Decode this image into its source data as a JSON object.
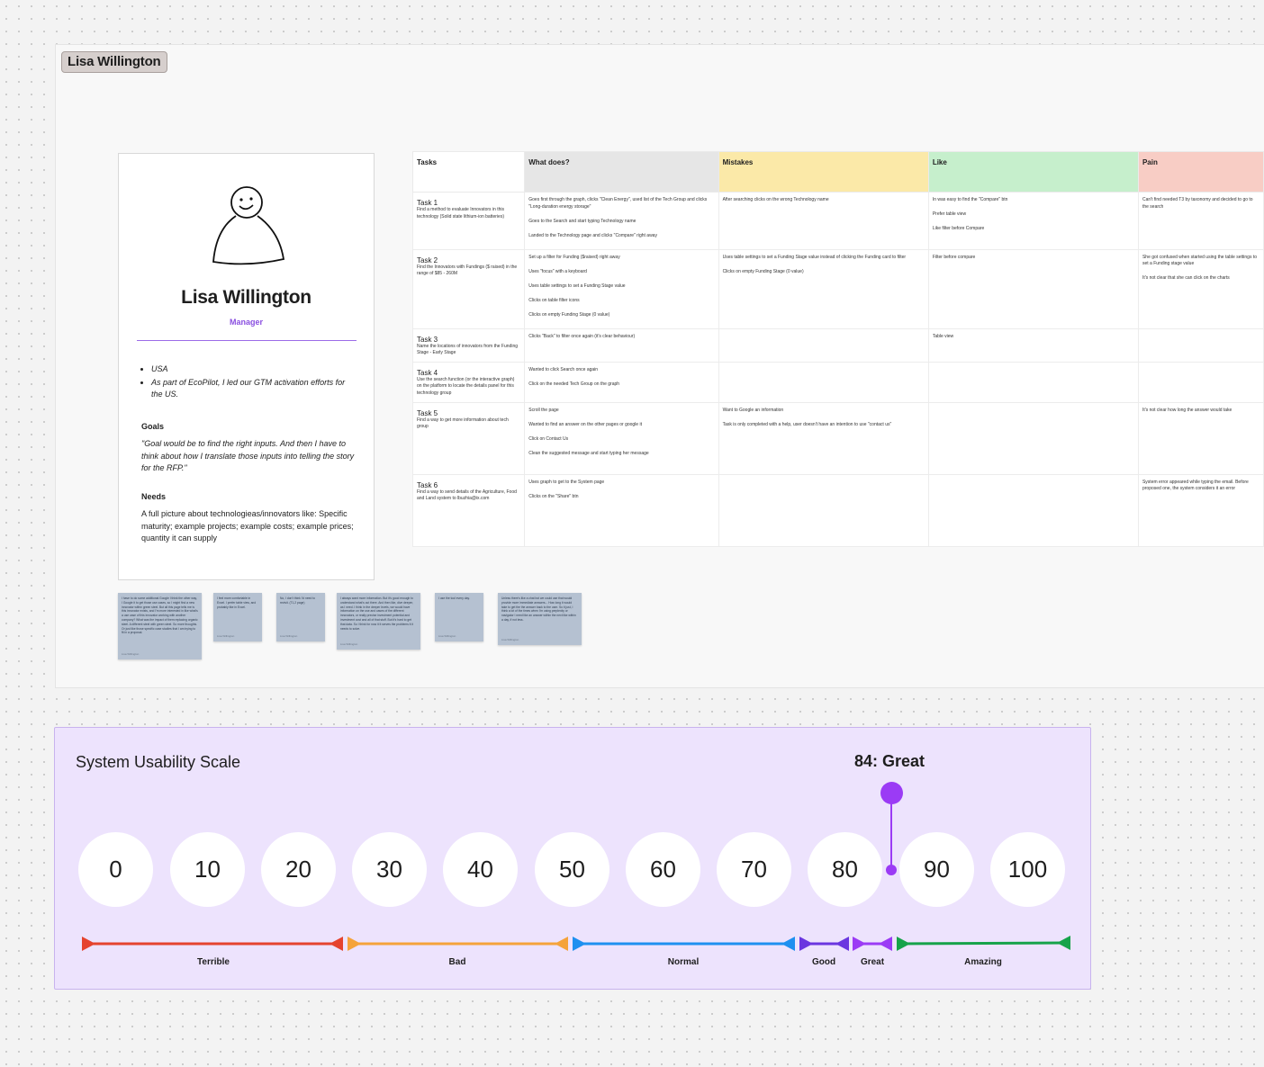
{
  "frame": {
    "tag": "Lisa Willington"
  },
  "persona": {
    "name": "Lisa Willington",
    "role": "Manager",
    "bullets": [
      "USA",
      "As part of EcoPilot, I led our GTM activation efforts for the US."
    ],
    "goals_heading": "Goals",
    "goals_text": "\"Goal would be to find the right inputs. And then I have to think about how I translate those inputs into telling the story for the RFP.\"",
    "needs_heading": "Needs",
    "needs_text": "A full picture about technologieas/innovators like: Specific maturity; example projects; example costs; example prices; quantity it can supply",
    "avatar_icon": "person-sketch-icon"
  },
  "table": {
    "headers": [
      {
        "label": "Tasks",
        "color": "#ffffff"
      },
      {
        "label": "What does?",
        "color": "#e6e6e6"
      },
      {
        "label": "Mistakes",
        "color": "#fbe9a8"
      },
      {
        "label": "Like",
        "color": "#c6efcc"
      },
      {
        "label": "Pain",
        "color": "#f8cdc5"
      }
    ],
    "rows": [
      {
        "task": "Task 1",
        "desc": "Find a method to evaluate Innovators in this technology (Solid state lithium-ion batteries)",
        "does": [
          "Goes first through the graph, clicks \"Clean Energy\", used list of the Tech Group and clicks \"Long-duration energy storage\"",
          "Goes to the Search and start typing Technology name",
          "Landed to the Technology page and clicks \"Compare\" right away"
        ],
        "mistakes": [
          "After searching clicks on the wrong Technology name"
        ],
        "like": [
          "In was easy to find the \"Compare\" btn",
          "Prefer table view",
          "Like filter before Compare"
        ],
        "pain": [
          "Can't find needed T3 by taxonomy and decided to go to the search"
        ]
      },
      {
        "task": "Task 2",
        "desc": "Find the Innovators with Fundings ($ raised) in the range of $85 - 260M",
        "does": [
          "Set up a filter for Funding ($raised) right away",
          "Uses \"focus\" with a keyboard",
          "Uses table settings to set a Funding Stage value",
          "Clicks on table filter icons",
          "Clicks on empty Funding Stage (0 value)"
        ],
        "mistakes": [
          "Uses table settings to set a Funding Stage value instead of clicking the Funding card to filter",
          "Clicks on empty Funding Stage (0 value)"
        ],
        "like": [
          "Filter before compare"
        ],
        "pain": [
          "She got confused when started using the table settings to set a Funding stage value",
          "It's not clear that she can click on the charts"
        ]
      },
      {
        "task": "Task 3",
        "desc": "Name the locations of innovators from the Funding Stage - Early Stage",
        "does": [
          "Clicks \"Back\" to filter once again (it's clear behaviour)"
        ],
        "mistakes": [],
        "like": [
          "Table view"
        ],
        "pain": []
      },
      {
        "task": "Task 4",
        "desc": "Use the search function (or the interactive graph) on the platform to locate the details panel for this technology group",
        "does": [
          "Wanted to click Search once again",
          "Click on the needed Tech Group on the graph"
        ],
        "mistakes": [],
        "like": [],
        "pain": []
      },
      {
        "task": "Task 5",
        "desc": "Find a way to get more information about tech group",
        "does": [
          "Scroll the page",
          "Wanted to find an answer on the other pages or google it",
          "Click on Contact Us",
          "Clean the suggested message and start typing her message"
        ],
        "mistakes": [
          "Want to Google an information",
          "Task is only completed with a help, user doesn't have an intention to use \"contact us\""
        ],
        "like": [],
        "pain": [
          "It's not clear how long the answer would take"
        ]
      },
      {
        "task": "Task 6",
        "desc": "Find a way to send details of the Agriculture, Food and Land system to lbuzhia@ix.com",
        "does": [
          "Uses graph to get to the System page",
          "Clicks on the \"Share\" btn"
        ],
        "mistakes": [],
        "like": [],
        "pain": [
          "System error appeared while typing the email. Before proposed one, the system considers it an error"
        ]
      }
    ]
  },
  "stickies": [
    {
      "text": "I have to do some additional Google I think the other way, I Google it to get those use cases, so I might find a new innovator within green steel. But all this page tells me is this innovator exists, and I'm more interested in like what's a use case of this innovator working with another company? What was the impact of them replacing organic steel. A different steel with green steel. So more thoughts. Or just like those specific case studies that I am trying to fit in a proposal.",
      "author": "Lisa Willington"
    },
    {
      "text": "I feel more comfortable in Excel. I prefer table view, and probably like in Excel.",
      "author": "Lisa Willington"
    },
    {
      "text": "No, I don't think I'd need to revisit. (T1,2 page)",
      "author": "Lisa Willington"
    },
    {
      "text": "I always want more information. But it's good enough to understand what's out there. And then like, dive deeper, as I need. I think in the deeper levels, we would have information on the use and cases of the different innovators, or really precise investment potential and investment cost and all of that stuff. But it's hard to get that data. So I think for now it it serves the problems it it needs to solve.",
      "author": "Lisa Willington"
    },
    {
      "text": "I use the tool every day.",
      "author": "Lisa Willington"
    },
    {
      "text": "Unless there's like a chat bot we could use that would provide more immediate answers... How long it would take to get the the answer back to the user. So it just, I think a lot of the times when I'm using perplexity or navigator I need like an answer within the next like within a day, if not less.",
      "author": "Lisa Willington"
    }
  ],
  "sus": {
    "title": "System Usability Scale",
    "score_label": "84: Great",
    "score": 84,
    "scale": [
      "0",
      "10",
      "20",
      "30",
      "40",
      "50",
      "60",
      "70",
      "80",
      "90",
      "100"
    ],
    "ranges": [
      {
        "label": "Terrible",
        "color": "#e5432e"
      },
      {
        "label": "Bad",
        "color": "#f5a33a"
      },
      {
        "label": "Normal",
        "color": "#1e90f0"
      },
      {
        "label": "Good",
        "color": "#6a36e0"
      },
      {
        "label": "Great",
        "color": "#9b3bf5"
      },
      {
        "label": "Amazing",
        "color": "#16a34a"
      }
    ]
  }
}
